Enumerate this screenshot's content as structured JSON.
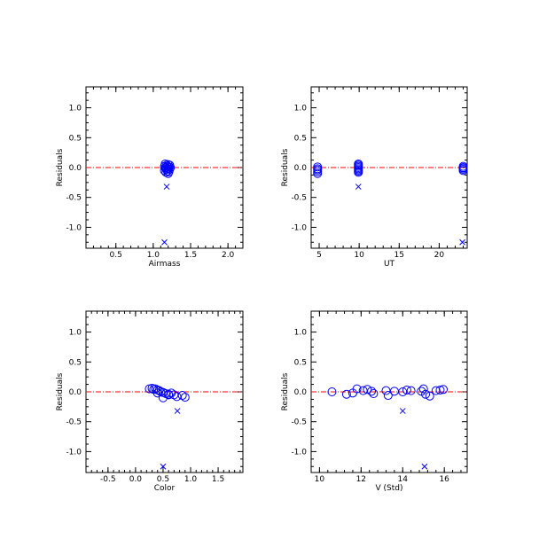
{
  "colors": {
    "marker": "#0000ff",
    "zero_line": "#ff0000",
    "axes": "#000000"
  },
  "chart_data": [
    {
      "type": "scatter",
      "xlabel": "Airmass",
      "ylabel": "Residuals",
      "xlim": [
        0.1,
        2.2
      ],
      "ylim": [
        -1.35,
        1.35
      ],
      "xticks": [
        0.5,
        1.0,
        1.5,
        2.0
      ],
      "xtick_labels": [
        "0.5",
        "1.0",
        "1.5",
        "2.0"
      ],
      "yticks": [
        -1.0,
        -0.5,
        0.0,
        0.5,
        1.0
      ],
      "ytick_labels": [
        "-1.0",
        "-0.5",
        "0.0",
        "0.5",
        "1.0"
      ],
      "reference_line": 0.0,
      "grid": false,
      "series": [
        {
          "marker": "circle",
          "points": [
            [
              1.16,
              0.06
            ],
            [
              1.2,
              0.05
            ],
            [
              1.18,
              0.04
            ],
            [
              1.22,
              0.04
            ],
            [
              1.15,
              0.02
            ],
            [
              1.19,
              0.02
            ],
            [
              1.21,
              0.01
            ],
            [
              1.17,
              0.0
            ],
            [
              1.23,
              0.0
            ],
            [
              1.16,
              -0.01
            ],
            [
              1.2,
              -0.02
            ],
            [
              1.18,
              -0.03
            ],
            [
              1.22,
              -0.03
            ],
            [
              1.15,
              -0.05
            ],
            [
              1.19,
              -0.06
            ],
            [
              1.21,
              -0.07
            ],
            [
              1.17,
              -0.08
            ],
            [
              1.2,
              -0.1
            ]
          ]
        },
        {
          "marker": "cross",
          "points": [
            [
              1.18,
              -0.32
            ],
            [
              1.15,
              -1.25
            ]
          ]
        }
      ]
    },
    {
      "type": "scatter",
      "xlabel": "UT",
      "ylabel": "Residuals",
      "xlim": [
        4.0,
        23.5
      ],
      "ylim": [
        -1.35,
        1.35
      ],
      "xticks": [
        5,
        10,
        15,
        20
      ],
      "xtick_labels": [
        "5",
        "10",
        "15",
        "20"
      ],
      "yticks": [
        -1.0,
        -0.5,
        0.0,
        0.5,
        1.0
      ],
      "ytick_labels": [
        "-1.0",
        "-0.5",
        "0.0",
        "0.5",
        "1.0"
      ],
      "reference_line": 0.0,
      "grid": false,
      "series": [
        {
          "marker": "circle",
          "points": [
            [
              4.8,
              0.01
            ],
            [
              4.8,
              -0.02
            ],
            [
              4.8,
              -0.04
            ],
            [
              4.8,
              -0.07
            ],
            [
              4.8,
              -0.1
            ],
            [
              9.9,
              0.06
            ],
            [
              9.9,
              0.04
            ],
            [
              9.9,
              0.02
            ],
            [
              9.9,
              0.0
            ],
            [
              9.9,
              -0.02
            ],
            [
              9.9,
              -0.04
            ],
            [
              9.9,
              -0.06
            ],
            [
              9.9,
              -0.08
            ],
            [
              23.0,
              0.02
            ],
            [
              23.0,
              0.0
            ],
            [
              23.0,
              -0.01
            ],
            [
              23.0,
              -0.03
            ],
            [
              23.0,
              -0.05
            ]
          ]
        },
        {
          "marker": "cross",
          "points": [
            [
              9.9,
              -0.32
            ],
            [
              22.9,
              -1.25
            ]
          ]
        }
      ]
    },
    {
      "type": "scatter",
      "xlabel": "Color",
      "ylabel": "Residuals",
      "xlim": [
        -0.9,
        1.95
      ],
      "ylim": [
        -1.35,
        1.35
      ],
      "xticks": [
        -0.5,
        0.0,
        0.5,
        1.0,
        1.5
      ],
      "xtick_labels": [
        "-0.5",
        "0.0",
        "0.5",
        "1.0",
        "1.5"
      ],
      "yticks": [
        -1.0,
        -0.5,
        0.0,
        0.5,
        1.0
      ],
      "ytick_labels": [
        "-1.0",
        "-0.5",
        "0.0",
        "0.5",
        "1.0"
      ],
      "reference_line": 0.0,
      "grid": false,
      "series": [
        {
          "marker": "circle",
          "points": [
            [
              0.25,
              0.05
            ],
            [
              0.3,
              0.06
            ],
            [
              0.33,
              0.04
            ],
            [
              0.36,
              0.05
            ],
            [
              0.4,
              0.03
            ],
            [
              0.43,
              0.02
            ],
            [
              0.46,
              0.0
            ],
            [
              0.5,
              -0.01
            ],
            [
              0.4,
              -0.02
            ],
            [
              0.55,
              -0.03
            ],
            [
              0.6,
              -0.04
            ],
            [
              0.65,
              -0.02
            ],
            [
              0.7,
              -0.05
            ],
            [
              0.75,
              -0.08
            ],
            [
              0.85,
              -0.06
            ],
            [
              0.9,
              -0.09
            ],
            [
              0.5,
              -0.1
            ],
            [
              0.6,
              -0.05
            ]
          ]
        },
        {
          "marker": "cross",
          "points": [
            [
              0.76,
              -0.32
            ],
            [
              0.5,
              -1.25
            ]
          ]
        }
      ]
    },
    {
      "type": "scatter",
      "xlabel": "V (Std)",
      "ylabel": "Residuals",
      "xlim": [
        9.6,
        17.1
      ],
      "ylim": [
        -1.35,
        1.35
      ],
      "xticks": [
        10,
        12,
        14,
        16
      ],
      "xtick_labels": [
        "10",
        "12",
        "14",
        "16"
      ],
      "yticks": [
        -1.0,
        -0.5,
        0.0,
        0.5,
        1.0
      ],
      "ytick_labels": [
        "-1.0",
        "-0.5",
        "0.0",
        "0.5",
        "1.0"
      ],
      "reference_line": 0.0,
      "grid": false,
      "series": [
        {
          "marker": "circle",
          "points": [
            [
              10.6,
              0.0
            ],
            [
              11.3,
              -0.04
            ],
            [
              11.6,
              -0.02
            ],
            [
              11.8,
              0.05
            ],
            [
              12.1,
              0.02
            ],
            [
              12.3,
              0.04
            ],
            [
              12.5,
              0.01
            ],
            [
              12.6,
              -0.03
            ],
            [
              13.2,
              0.02
            ],
            [
              13.3,
              -0.06
            ],
            [
              13.6,
              0.01
            ],
            [
              14.0,
              0.0
            ],
            [
              14.2,
              0.03
            ],
            [
              14.4,
              0.02
            ],
            [
              14.9,
              0.01
            ],
            [
              15.0,
              0.05
            ],
            [
              15.1,
              -0.04
            ],
            [
              15.3,
              -0.07
            ],
            [
              15.6,
              0.02
            ],
            [
              15.8,
              0.03
            ],
            [
              15.95,
              0.04
            ]
          ]
        },
        {
          "marker": "cross",
          "points": [
            [
              14.0,
              -0.32
            ],
            [
              15.05,
              -1.25
            ]
          ]
        }
      ]
    }
  ]
}
